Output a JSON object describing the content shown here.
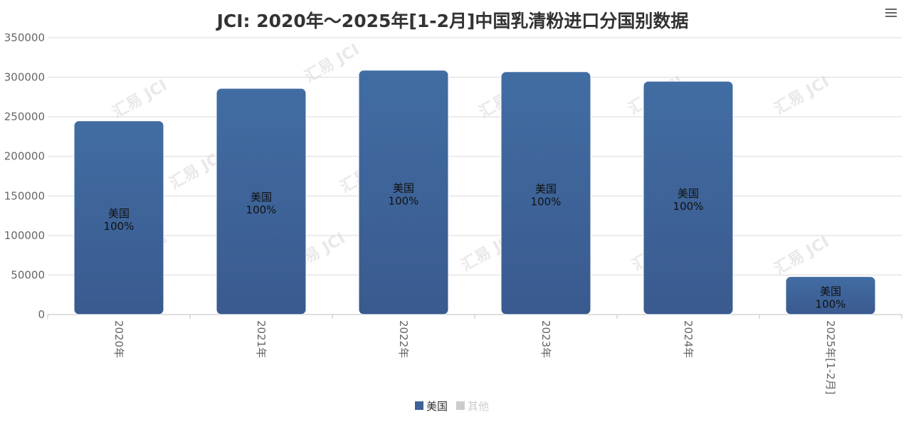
{
  "chart_data": {
    "type": "bar",
    "title": "JCI: 2020年～2025年[1-2月]中国乳清粉进口分国别数据",
    "categories": [
      "2020年",
      "2021年",
      "2022年",
      "2023年",
      "2024年",
      "2025年[1-2月]"
    ],
    "series": [
      {
        "name": "美国",
        "color": "#3e6198",
        "values": [
          245000,
          286000,
          309000,
          307000,
          295000,
          48000
        ],
        "labels": [
          "100%",
          "100%",
          "100%",
          "100%",
          "100%",
          "100%"
        ]
      },
      {
        "name": "其他",
        "color": "#cccccc",
        "values": [
          0,
          0,
          0,
          0,
          0,
          0
        ]
      }
    ],
    "ylim": [
      0,
      350000
    ],
    "yticks": [
      0,
      50000,
      100000,
      150000,
      200000,
      250000,
      300000,
      350000
    ],
    "xlabel": "",
    "ylabel": "",
    "grid": true,
    "legend_position": "bottom-center"
  },
  "menu_icon": "hamburger-menu-icon",
  "watermark": "汇易 JCI"
}
